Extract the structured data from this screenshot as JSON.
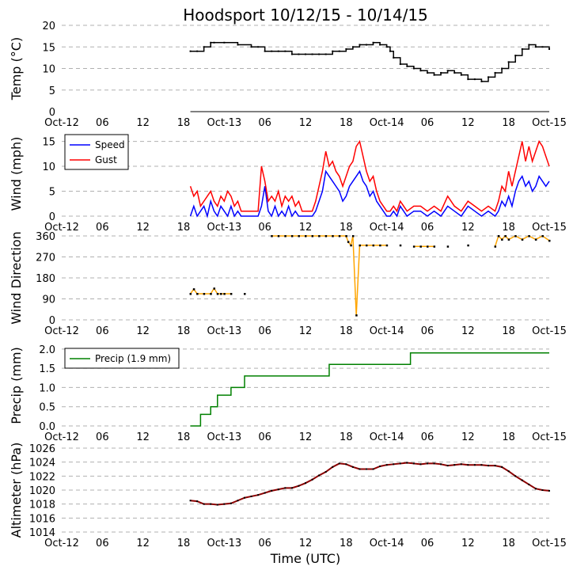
{
  "title": "Hoodsport 10/12/15 - 10/14/15",
  "xlabel": "Time (UTC)",
  "x_ticks": [
    "Oct-12",
    "06",
    "12",
    "18",
    "Oct-13",
    "06",
    "12",
    "18",
    "Oct-14",
    "06",
    "12",
    "18",
    "Oct-15"
  ],
  "colors": {
    "temp": "#000000",
    "speed": "#0000ff",
    "gust": "#ff0000",
    "direction_line": "#ffa500",
    "direction_dot": "#000000",
    "precip": "#008000",
    "altimeter": "#8b0000",
    "grid": "#b0b0b0"
  },
  "chart_data": [
    {
      "type": "line",
      "id": "temp",
      "ylabel": "Temp (°C)",
      "ylim": [
        0,
        20
      ],
      "yticks": [
        "0",
        "5",
        "10",
        "15",
        "20"
      ],
      "x_unit": "hours since Oct-12 00 UTC",
      "xlim": [
        0,
        72
      ],
      "series": [
        {
          "x": [
            19,
            20,
            21,
            22,
            22.5,
            24,
            26,
            28,
            29,
            30,
            31,
            32,
            33,
            34,
            35,
            36,
            37,
            38,
            39,
            40,
            41,
            42,
            43,
            44,
            45,
            46,
            47,
            48,
            48.5,
            49,
            50,
            51,
            52,
            53,
            54,
            55,
            56,
            57,
            58,
            59,
            60,
            61,
            62,
            63,
            64,
            65,
            66,
            67,
            68,
            69,
            70,
            71,
            72
          ],
          "y": [
            14,
            14,
            15,
            16,
            16,
            16,
            15.5,
            15,
            15,
            14,
            14,
            14,
            14,
            13.3,
            13.3,
            13.3,
            13.3,
            13.3,
            13.3,
            14,
            14,
            14.5,
            15,
            15.5,
            15.5,
            16,
            15.5,
            15,
            14,
            12.5,
            11,
            10.5,
            10,
            9.5,
            9,
            8.5,
            9,
            9.5,
            9,
            8.5,
            7.5,
            7.5,
            7,
            8,
            9,
            10,
            11.5,
            13,
            14.5,
            15.5,
            15,
            15,
            14.5
          ]
        }
      ]
    },
    {
      "type": "line",
      "id": "wind",
      "ylabel": "Wind (mph)",
      "ylim": [
        0,
        17
      ],
      "yticks": [
        "0",
        "5",
        "10",
        "15"
      ],
      "legend": "top-left",
      "series": [
        {
          "name": "Speed",
          "x": [
            19,
            19.5,
            20,
            20.5,
            21,
            21.5,
            22,
            22.5,
            23,
            23.5,
            24,
            24.5,
            25,
            25.5,
            26,
            26.5,
            27,
            28,
            29,
            29.5,
            30,
            30.5,
            31,
            31.5,
            32,
            32.5,
            33,
            33.5,
            34,
            34.5,
            35,
            35.5,
            36,
            36.5,
            37,
            37.5,
            38,
            38.5,
            39,
            39.5,
            40,
            40.5,
            41,
            41.5,
            42,
            42.5,
            43,
            43.5,
            44,
            44.5,
            45,
            45.5,
            46,
            46.5,
            47,
            47.5,
            48,
            48.5,
            49,
            49.5,
            50,
            51,
            52,
            53,
            54,
            55,
            56,
            57,
            58,
            59,
            60,
            61,
            62,
            63,
            64,
            64.5,
            65,
            65.5,
            66,
            66.5,
            67,
            67.5,
            68,
            68.5,
            69,
            69.5,
            70,
            70.5,
            71,
            71.5,
            72
          ],
          "y": [
            0,
            2,
            0,
            1,
            2,
            0,
            3,
            1,
            0,
            2,
            1,
            0,
            2,
            0,
            1,
            0,
            0,
            0,
            0,
            2,
            6,
            1,
            0,
            2,
            0,
            1,
            0,
            2,
            0,
            1,
            0,
            0,
            0,
            0,
            0,
            1,
            3,
            5,
            9,
            8,
            7,
            6,
            5,
            3,
            4,
            6,
            7,
            8,
            9,
            7,
            6,
            4,
            5,
            3,
            2,
            1,
            0,
            0,
            1,
            0,
            2,
            0,
            1,
            1,
            0,
            1,
            0,
            2,
            1,
            0,
            2,
            1,
            0,
            1,
            0,
            1,
            3,
            2,
            4,
            2,
            5,
            7,
            8,
            6,
            7,
            5,
            6,
            8,
            7,
            6,
            7
          ]
        },
        {
          "name": "Gust",
          "x": [
            19,
            19.5,
            20,
            20.5,
            21,
            21.5,
            22,
            22.5,
            23,
            23.5,
            24,
            24.5,
            25,
            25.5,
            26,
            26.5,
            27,
            28,
            29,
            29.5,
            30,
            30.5,
            31,
            31.5,
            32,
            32.5,
            33,
            33.5,
            34,
            34.5,
            35,
            35.5,
            36,
            36.5,
            37,
            37.5,
            38,
            38.5,
            39,
            39.5,
            40,
            40.5,
            41,
            41.5,
            42,
            42.5,
            43,
            43.5,
            44,
            44.5,
            45,
            45.5,
            46,
            46.5,
            47,
            47.5,
            48,
            48.5,
            49,
            49.5,
            50,
            51,
            52,
            53,
            54,
            55,
            56,
            57,
            58,
            59,
            60,
            61,
            62,
            63,
            64,
            64.5,
            65,
            65.5,
            66,
            66.5,
            67,
            67.5,
            68,
            68.5,
            69,
            69.5,
            70,
            70.5,
            71,
            71.5,
            72
          ],
          "y": [
            6,
            4,
            5,
            2,
            3,
            4,
            5,
            3,
            2,
            4,
            3,
            5,
            4,
            2,
            3,
            1,
            1,
            1,
            1,
            10,
            7,
            3,
            4,
            3,
            5,
            2,
            4,
            3,
            4,
            2,
            3,
            1,
            1,
            1,
            1,
            3,
            6,
            9,
            13,
            10,
            11,
            9,
            8,
            6,
            8,
            10,
            11,
            14,
            15,
            12,
            9,
            7,
            8,
            5,
            3,
            2,
            1,
            1,
            2,
            1,
            3,
            1,
            2,
            2,
            1,
            2,
            1,
            4,
            2,
            1,
            3,
            2,
            1,
            2,
            1,
            3,
            6,
            5,
            9,
            6,
            9,
            12,
            15,
            11,
            14,
            11,
            13,
            15,
            14,
            12,
            10
          ]
        }
      ]
    },
    {
      "type": "scatter",
      "id": "direction",
      "ylabel": "Wind Direction",
      "ylim": [
        0,
        360
      ],
      "yticks": [
        "0",
        "90",
        "180",
        "270",
        "360"
      ],
      "x": [
        19,
        19.5,
        20,
        21,
        22,
        22.5,
        23,
        23.5,
        24,
        25,
        27,
        31,
        32,
        33,
        34,
        35,
        36,
        37,
        38,
        39,
        40,
        41,
        42,
        42.3,
        42.7,
        43,
        43.5,
        44,
        45,
        46,
        47,
        48,
        50,
        52,
        53,
        54,
        55,
        57,
        60,
        64,
        64.5,
        65,
        65.5,
        66,
        67,
        68,
        69,
        70,
        71,
        72
      ],
      "y": [
        112,
        132,
        112,
        112,
        112,
        135,
        112,
        112,
        112,
        112,
        112,
        360,
        360,
        360,
        360,
        360,
        360,
        360,
        360,
        360,
        360,
        360,
        360,
        335,
        320,
        360,
        20,
        320,
        320,
        320,
        320,
        320,
        320,
        315,
        315,
        315,
        315,
        315,
        320,
        315,
        360,
        345,
        360,
        345,
        360,
        345,
        360,
        345,
        360,
        340
      ]
    },
    {
      "type": "line",
      "id": "precip",
      "ylabel": "Precip (mm)",
      "ylim": [
        0,
        2.1
      ],
      "yticks": [
        "0.0",
        "0.5",
        "1.0",
        "1.5",
        "2.0"
      ],
      "legend": "top-left",
      "series": [
        {
          "name": "Precip (1.9 mm)",
          "x": [
            19,
            20.5,
            22,
            23,
            25,
            27,
            38,
            39.5,
            40,
            41,
            49,
            51.5,
            54,
            56,
            58,
            60,
            64,
            72
          ],
          "y": [
            0,
            0.3,
            0.5,
            0.8,
            1.0,
            1.3,
            1.3,
            1.6,
            1.6,
            1.6,
            1.6,
            1.9,
            1.9,
            1.9,
            1.9,
            1.9,
            1.9,
            1.9
          ]
        }
      ]
    },
    {
      "type": "line",
      "id": "altimeter",
      "ylabel": "Altimeter (hPa)",
      "ylim": [
        1014,
        1026
      ],
      "yticks": [
        "1014",
        "1016",
        "1018",
        "1020",
        "1022",
        "1024",
        "1026"
      ],
      "series": [
        {
          "x": [
            19,
            20,
            21,
            22,
            23,
            24,
            25,
            26,
            27,
            28,
            29,
            30,
            31,
            32,
            33,
            34,
            35,
            36,
            37,
            38,
            39,
            40,
            41,
            42,
            43,
            44,
            45,
            46,
            47,
            48,
            49,
            50,
            51,
            52,
            53,
            54,
            55,
            56,
            57,
            58,
            59,
            60,
            61,
            62,
            63,
            64,
            65,
            66,
            67,
            68,
            69,
            70,
            71,
            72
          ],
          "y": [
            1018.5,
            1018.4,
            1018.0,
            1018.0,
            1017.9,
            1018.0,
            1018.1,
            1018.5,
            1018.9,
            1019.1,
            1019.3,
            1019.6,
            1019.9,
            1020.1,
            1020.3,
            1020.3,
            1020.6,
            1021.0,
            1021.5,
            1022.1,
            1022.6,
            1023.3,
            1023.8,
            1023.7,
            1023.3,
            1023.0,
            1023.0,
            1023.0,
            1023.4,
            1023.6,
            1023.7,
            1023.8,
            1023.9,
            1023.8,
            1023.7,
            1023.8,
            1023.8,
            1023.7,
            1023.5,
            1023.6,
            1023.7,
            1023.6,
            1023.6,
            1023.6,
            1023.5,
            1023.5,
            1023.3,
            1022.7,
            1022.0,
            1021.4,
            1020.8,
            1020.2,
            1020.0,
            1019.9
          ]
        }
      ]
    }
  ]
}
